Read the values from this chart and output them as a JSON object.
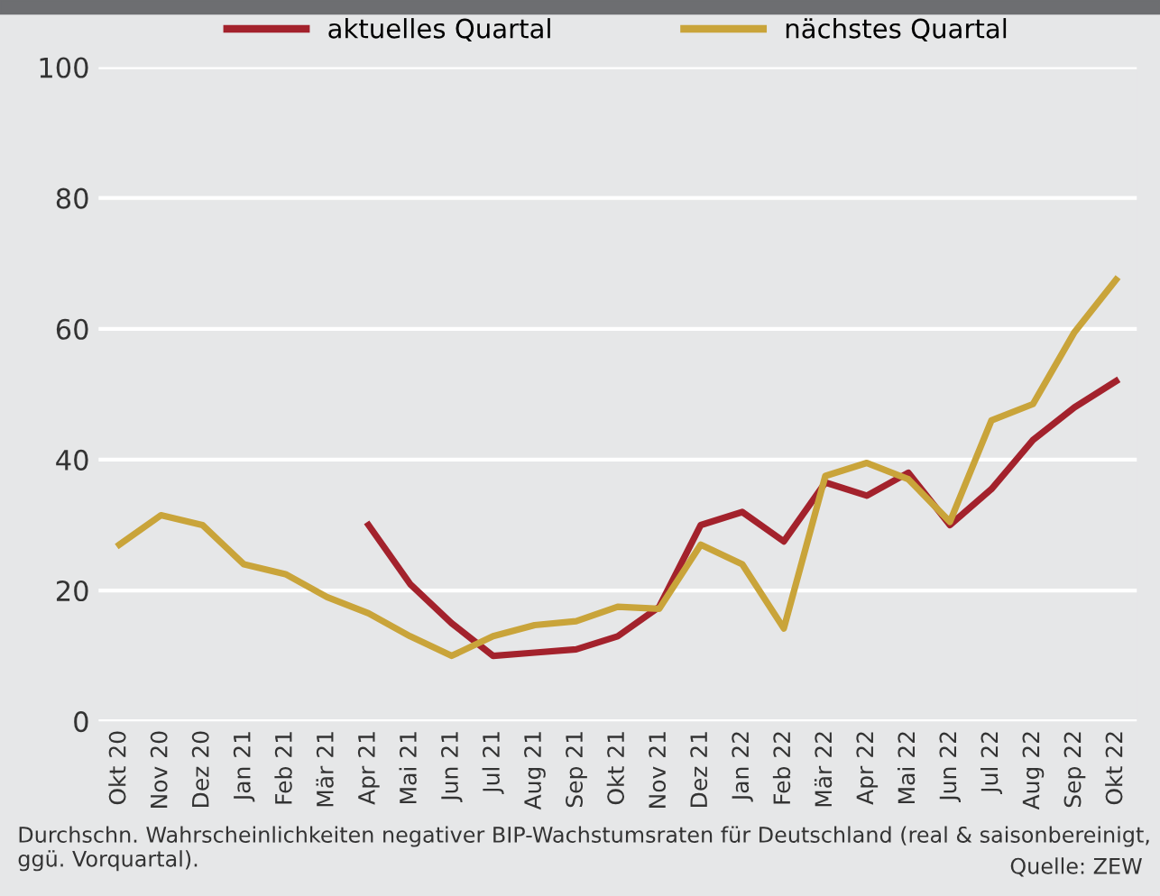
{
  "chart_data": {
    "type": "line",
    "categories": [
      "Okt 20",
      "Nov 20",
      "Dez 20",
      "Jan 21",
      "Feb 21",
      "Mär 21",
      "Apr 21",
      "Mai 21",
      "Jun 21",
      "Jul 21",
      "Aug 21",
      "Sep 21",
      "Okt 21",
      "Nov 21",
      "Dez 21",
      "Jan 22",
      "Feb 22",
      "Mär 22",
      "Apr 22",
      "Mai 22",
      "Jun 22",
      "Jul 22",
      "Aug 22",
      "Sep 22",
      "Okt 22"
    ],
    "series": [
      {
        "name": "aktuelles Quartal",
        "color": "#a3222c",
        "values": [
          null,
          null,
          null,
          null,
          null,
          null,
          30,
          21,
          15,
          10,
          10.5,
          11,
          13,
          17.5,
          30,
          32,
          27.5,
          36.5,
          34.5,
          38,
          30,
          35.5,
          43,
          48,
          52
        ]
      },
      {
        "name": "nächstes Quartal",
        "color": "#c9a43a",
        "values": [
          27,
          31.5,
          30,
          24,
          22.5,
          19,
          16.5,
          13,
          10,
          13,
          14.7,
          15.3,
          17.5,
          17.2,
          27,
          24,
          14.2,
          37.5,
          39.5,
          37,
          30.5,
          46,
          48.5,
          59.5,
          67.5
        ]
      }
    ],
    "ylim": [
      0,
      100
    ],
    "yticks": [
      0,
      20,
      40,
      60,
      80,
      100
    ],
    "grid": "y",
    "legend": "top",
    "marker": "none",
    "line_style": "solid",
    "annotations": [
      "Durchschn. Wahrscheinlichkeiten negativer BIP-Wachstumsraten für Deutschland (real & saisonbereinigt, ggü. Vorquartal).",
      "Quelle: ZEW"
    ]
  }
}
